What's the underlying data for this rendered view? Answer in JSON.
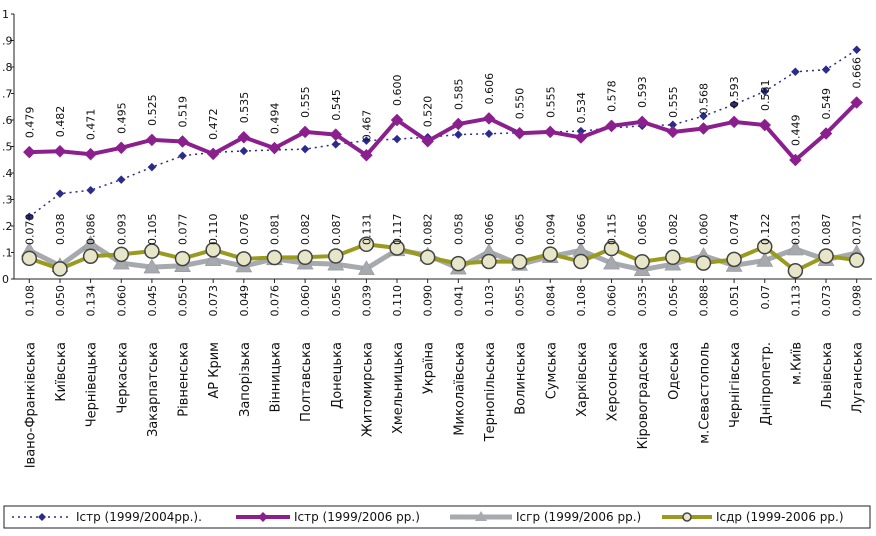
{
  "chart_data": {
    "type": "line",
    "y_ticks": [
      "0",
      ".1",
      ".2",
      ".3",
      ".4",
      ".5",
      ".6",
      ".7",
      ".8",
      ".9",
      "1"
    ],
    "ylim": [
      0,
      1
    ],
    "grid": false,
    "legend_position": "bottom",
    "categories": [
      "Івано-Франківська",
      "Київська",
      "Чернівецька",
      "Черкаська",
      "Закарпатська",
      "Рівненська",
      "АР Крим",
      "Запорізька",
      "Вінницька",
      "Полтавська",
      "Донецька",
      "Житомирська",
      "Хмельницька",
      "Україна",
      "Миколаївська",
      "Тернопільська",
      "Волинська",
      "Сумська",
      "Харківська",
      "Херсонська",
      "Кіровоградська",
      "Одеська",
      "м.Севастополь",
      "Чернігівська",
      "Дніпропетр.",
      "м.Київ",
      "Львівська",
      "Луганська"
    ],
    "series": [
      {
        "name": "Iстр (1999/2004рр.).",
        "color": "#2b2b8c",
        "style": "dotted-diamond",
        "values": [
          0.235,
          0.322,
          0.335,
          0.375,
          0.422,
          0.465,
          0.478,
          0.483,
          0.487,
          0.49,
          0.508,
          0.522,
          0.528,
          0.535,
          0.545,
          0.548,
          0.552,
          0.555,
          0.558,
          0.57,
          0.578,
          0.582,
          0.615,
          0.658,
          0.708,
          0.782,
          0.79,
          0.865
        ]
      },
      {
        "name": "Iстр (1999/2006 рр.)",
        "color": "#8b1f8e",
        "style": "solid-diamond",
        "values": [
          0.479,
          0.482,
          0.471,
          0.495,
          0.525,
          0.519,
          0.472,
          0.535,
          0.494,
          0.555,
          0.545,
          0.467,
          0.6,
          0.52,
          0.585,
          0.606,
          0.55,
          0.555,
          0.534,
          0.578,
          0.593,
          0.555,
          0.568,
          0.593,
          0.581,
          0.449,
          0.549,
          0.666
        ],
        "labels": [
          "0.479",
          "0.482",
          "0.471",
          "0.495",
          "0.525",
          "0.519",
          "0.472",
          "0.535",
          "0.494",
          "0.555",
          "0.545",
          "0.467",
          "0.600",
          "0.520",
          "0.585",
          "0.606",
          "0.550",
          "0.555",
          "0.534",
          "0.578",
          "0.593",
          "0.555",
          "0.568",
          "0.593",
          "0.581",
          "0.449",
          "0.549",
          "0.666"
        ]
      },
      {
        "name": "Iсгр (1999/2006 рр.)",
        "color": "#a6a9ad",
        "style": "solid-triangle",
        "values": [
          0.108,
          0.05,
          0.134,
          0.06,
          0.045,
          0.05,
          0.073,
          0.049,
          0.076,
          0.06,
          0.056,
          0.039,
          0.11,
          0.09,
          0.041,
          0.103,
          0.055,
          0.084,
          0.108,
          0.06,
          0.035,
          0.056,
          0.088,
          0.051,
          0.07,
          0.113,
          0.073,
          0.098
        ],
        "labels": [
          "0.108",
          "0.050",
          "0.134",
          "0.060",
          "0.045",
          "0.050",
          "0.073",
          "0.049",
          "0.076",
          "0.060",
          "0.056",
          "0.039",
          "0.110",
          "0.090",
          "0.041",
          "0.103",
          "0.055",
          "0.084",
          "0.108",
          "0.060",
          "0.035",
          "0.056",
          "0.088",
          "0.051",
          "0.07",
          "0.113",
          "0.073",
          "0.098"
        ]
      },
      {
        "name": "Iсдр (1999-2006 рр.)",
        "color": "#9a9a1e",
        "style": "solid-circle",
        "values": [
          0.078,
          0.038,
          0.086,
          0.093,
          0.105,
          0.077,
          0.11,
          0.076,
          0.081,
          0.082,
          0.087,
          0.131,
          0.117,
          0.082,
          0.058,
          0.066,
          0.065,
          0.094,
          0.066,
          0.115,
          0.065,
          0.082,
          0.06,
          0.074,
          0.122,
          0.031,
          0.087,
          0.071
        ],
        "labels": [
          "0.078",
          "0.038",
          "0.086",
          "0.093",
          "0.105",
          "0.077",
          "0.110",
          "0.076",
          "0.081",
          "0.082",
          "0.087",
          "0.131",
          "0.117",
          "0.082",
          "0.058",
          "0.066",
          "0.065",
          "0.094",
          "0.066",
          "0.115",
          "0.065",
          "0.082",
          "0.060",
          "0.074",
          "0.122",
          "0.031",
          "0.087",
          "0.071"
        ]
      }
    ]
  }
}
